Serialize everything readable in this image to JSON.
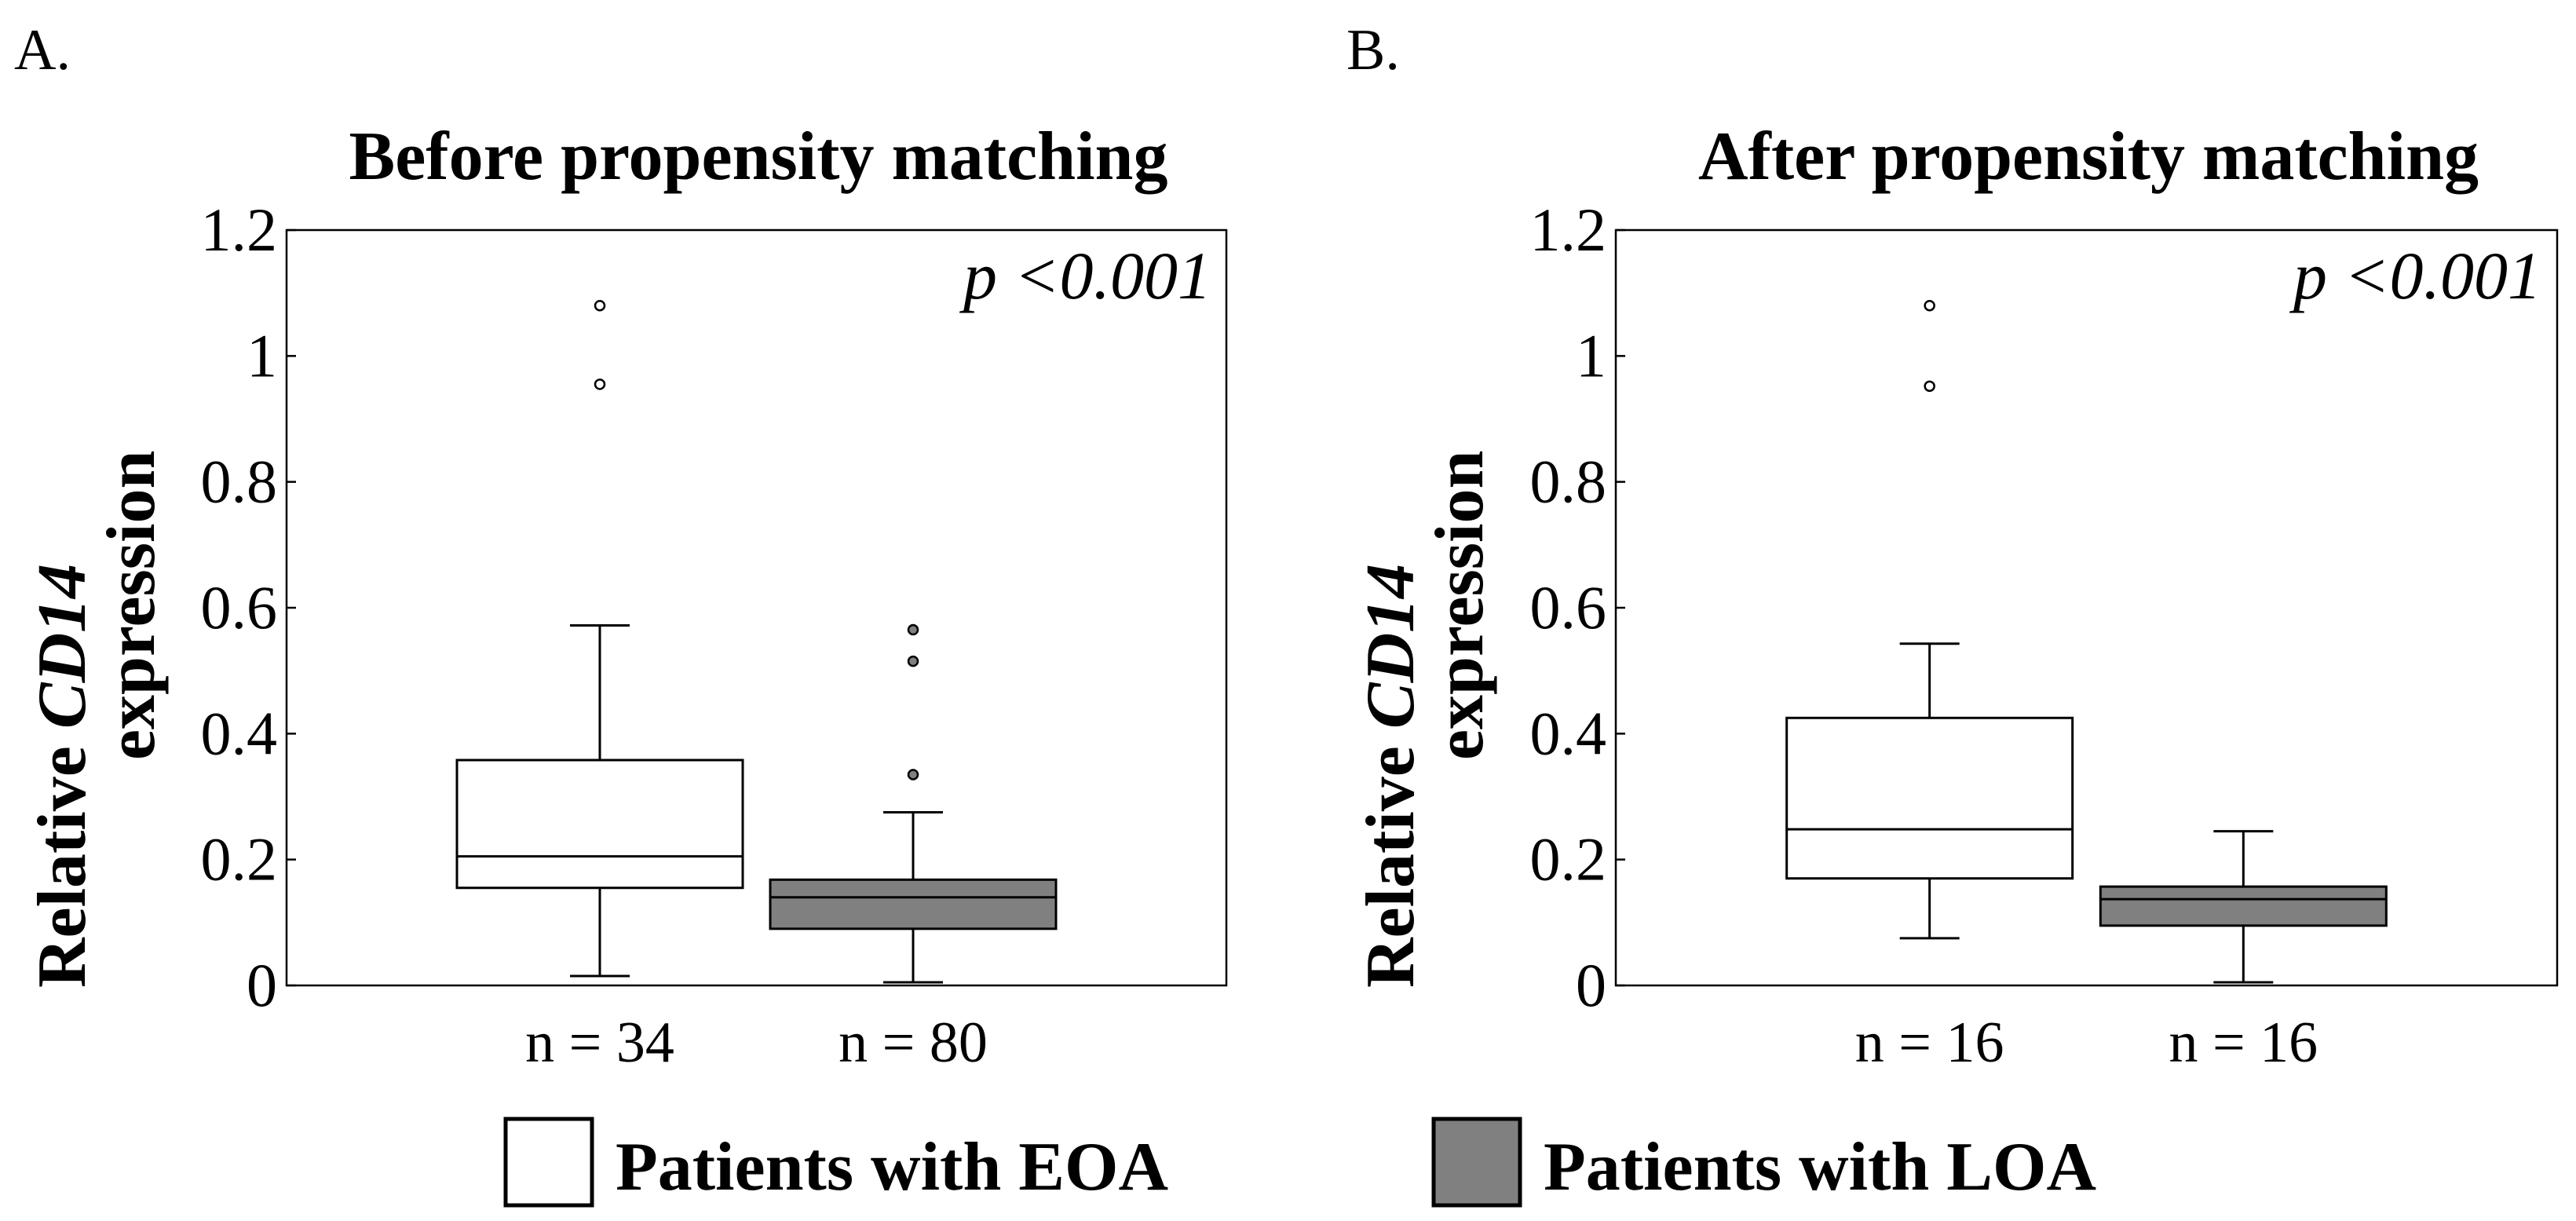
{
  "chart_data": [
    {
      "type": "box",
      "panel_label": "A.",
      "title": "Before propensity matching",
      "ylabel_plain_start": "Relative ",
      "ylabel_italic": "CD14",
      "ylabel_line2": "expression",
      "ylim": [
        0,
        1.2
      ],
      "yticks": [
        0,
        0.2,
        0.4,
        0.6,
        0.8,
        1,
        1.2
      ],
      "ytick_labels": [
        "0",
        "0.2",
        "0.4",
        "0.6",
        "0.8",
        "1",
        "1.2"
      ],
      "annotation_prefix": "p",
      "annotation_value": "<0.001",
      "xlim": [
        0.5,
        3.5
      ],
      "groups": [
        {
          "name": "Patients with EOA",
          "position": 1.5,
          "n_label": "n = 34",
          "color": "#ffffff",
          "whisker_low": 0.015,
          "q1": 0.155,
          "median": 0.205,
          "q3": 0.358,
          "whisker_high": 0.572,
          "outliers": [
            0.955,
            1.08
          ]
        },
        {
          "name": "Patients with LOA",
          "position": 2.5,
          "n_label": "n = 80",
          "color": "#808080",
          "whisker_low": 0.005,
          "q1": 0.09,
          "median": 0.14,
          "q3": 0.168,
          "whisker_high": 0.275,
          "outliers": [
            0.335,
            0.515,
            0.565
          ]
        }
      ]
    },
    {
      "type": "box",
      "panel_label": "B.",
      "title": "After propensity matching",
      "ylabel_plain_start": "Relative ",
      "ylabel_italic": "CD14",
      "ylabel_line2": "expression",
      "ylim": [
        0,
        1.2
      ],
      "yticks": [
        0,
        0.2,
        0.4,
        0.6,
        0.8,
        1,
        1.2
      ],
      "ytick_labels": [
        "0",
        "0.2",
        "0.4",
        "0.6",
        "0.8",
        "1",
        "1.2"
      ],
      "annotation_prefix": "p",
      "annotation_value": "<0.001",
      "xlim": [
        0.5,
        3.5
      ],
      "groups": [
        {
          "name": "Patients with EOA",
          "position": 1.5,
          "n_label": "n = 16",
          "color": "#ffffff",
          "whisker_low": 0.075,
          "q1": 0.17,
          "median": 0.248,
          "q3": 0.425,
          "whisker_high": 0.543,
          "outliers": [
            0.952,
            1.08
          ]
        },
        {
          "name": "Patients with LOA",
          "position": 2.5,
          "n_label": "n = 16",
          "color": "#808080",
          "whisker_low": 0.005,
          "q1": 0.095,
          "median": 0.137,
          "q3": 0.157,
          "whisker_high": 0.245,
          "outliers": []
        }
      ]
    }
  ],
  "legend": [
    {
      "label": "Patients with EOA",
      "color": "#ffffff"
    },
    {
      "label": "Patients with LOA",
      "color": "#808080"
    }
  ]
}
